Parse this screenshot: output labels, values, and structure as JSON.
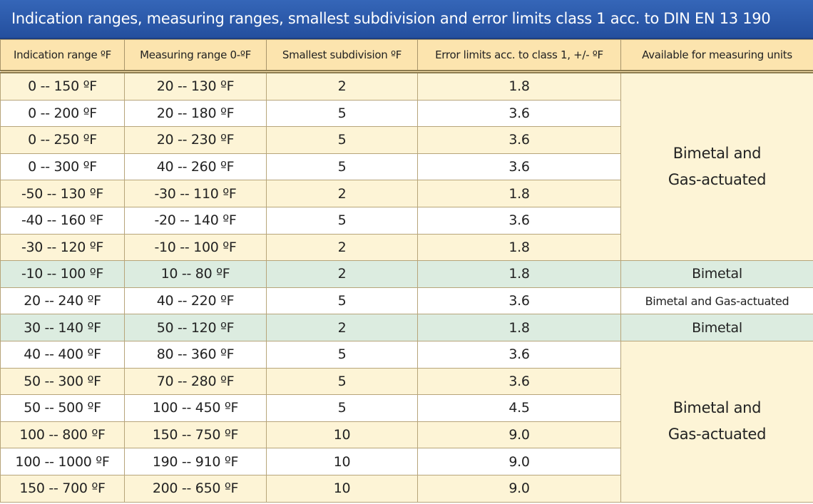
{
  "header": {
    "title": "Indication ranges, measuring ranges, smallest subdivision and error limits class 1 acc. to DIN EN 13 190"
  },
  "table": {
    "columns": [
      "Indication range ºF",
      "Measuring range 0-ºF",
      "Smallest subdivision ºF",
      "Error limits acc. to class 1, +/- ºF",
      "Available for measuring units"
    ],
    "rows": [
      [
        "0 -- 150 ºF",
        "20 -- 130 ºF",
        "2",
        "1.8",
        "Bimetal and Gas-actuated"
      ],
      [
        "0 -- 200 ºF",
        "20 -- 180 ºF",
        "5",
        "3.6",
        null
      ],
      [
        "0 -- 250 ºF",
        "20 -- 230 ºF",
        "5",
        "3.6",
        null
      ],
      [
        "0 -- 300 ºF",
        "40 -- 260 ºF",
        "5",
        "3.6",
        null
      ],
      [
        "-50 -- 130 ºF",
        "-30 -- 110 ºF",
        "2",
        "1.8",
        null
      ],
      [
        "-40 -- 160 ºF",
        "-20 -- 140 ºF",
        "5",
        "3.6",
        null
      ],
      [
        "-30 -- 120 ºF",
        "-10 -- 100 ºF",
        "2",
        "1.8",
        null
      ],
      [
        "-10 -- 100 ºF",
        "10 -- 80 ºF",
        "2",
        "1.8",
        "Bimetal"
      ],
      [
        "20 -- 240 ºF",
        "40 -- 220 ºF",
        "5",
        "3.6",
        "Bimetal and Gas-actuated"
      ],
      [
        "30 -- 140 ºF",
        "50 -- 120 ºF",
        "2",
        "1.8",
        "Bimetal"
      ],
      [
        "40 -- 400 ºF",
        "80 -- 360 ºF",
        "5",
        "3.6",
        "Bimetal and Gas-actuated"
      ],
      [
        "50 -- 300 ºF",
        "70 -- 280 ºF",
        "5",
        "3.6",
        null
      ],
      [
        "50 -- 500 ºF",
        "100 -- 450 ºF",
        "5",
        "4.5",
        null
      ],
      [
        "100 -- 800 ºF",
        "150 -- 750 ºF",
        "10",
        "9.0",
        null
      ],
      [
        "100 -- 1000 ºF",
        "190 -- 910 ºF",
        "10",
        "9.0",
        null
      ],
      [
        "150 -- 700 ºF",
        "200 -- 650 ºF",
        "10",
        "9.0",
        null
      ]
    ]
  }
}
